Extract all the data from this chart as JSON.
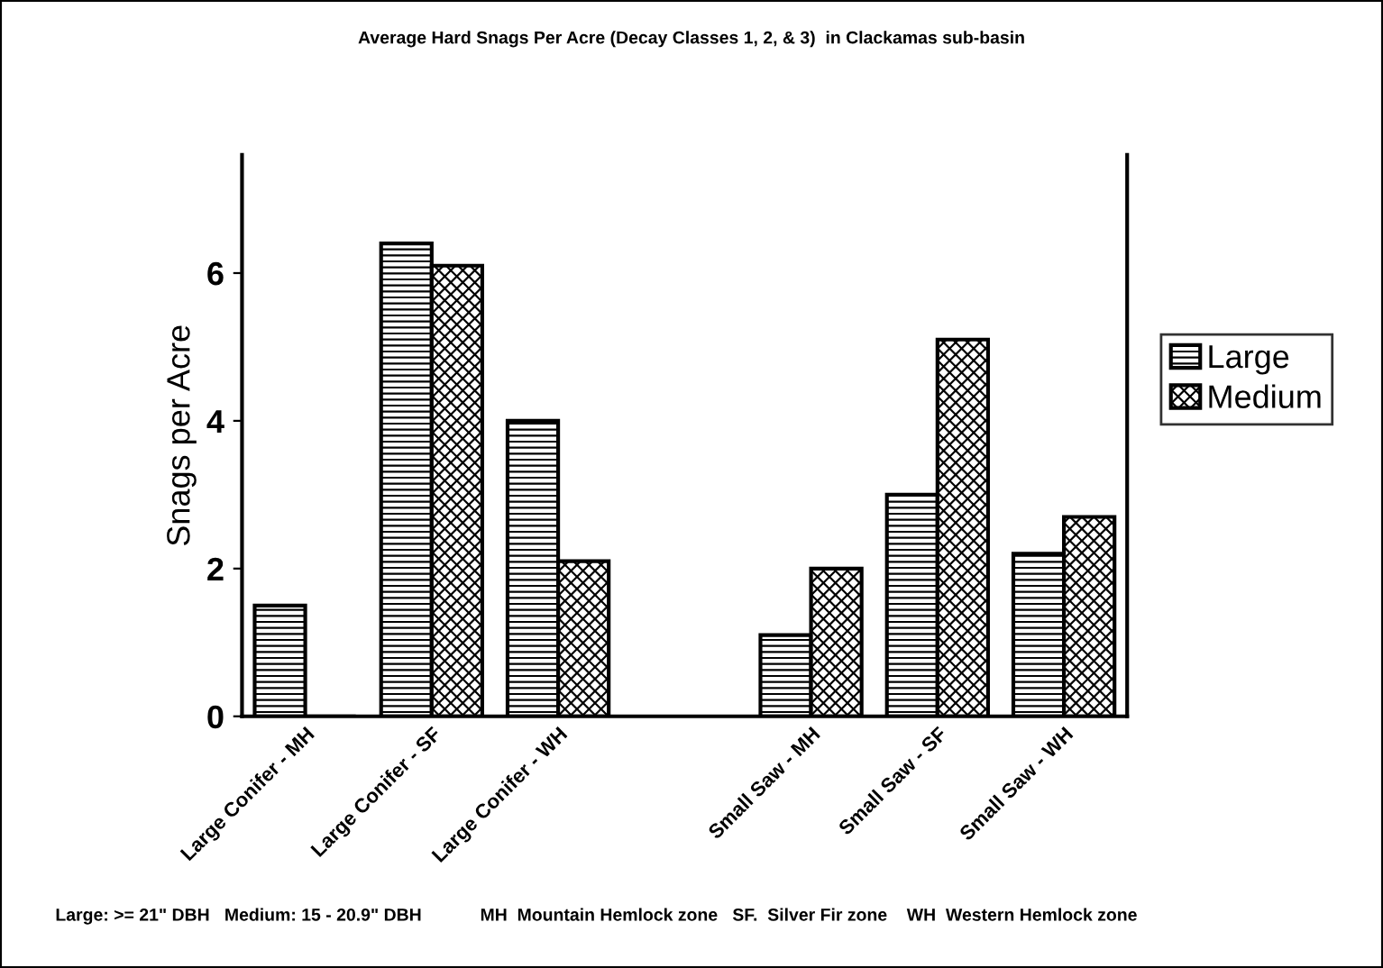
{
  "chart_data": {
    "type": "bar",
    "title": "Average Hard Snags Per Acre (Decay Classes 1, 2, & 3)  in Clackamas sub-basin",
    "ylabel": "Snags per Acre",
    "categories": [
      "Large Conifer - MH",
      "Large Conifer - SF",
      "Large Conifer - WH",
      null,
      "Small Saw - MH",
      "Small Saw - SF",
      "Small Saw - WH"
    ],
    "series": [
      {
        "name": "Large",
        "color": "#000000",
        "values": [
          1.5,
          6.4,
          4.0,
          null,
          1.1,
          3.0,
          2.2
        ]
      },
      {
        "name": "Medium",
        "color": "#000000",
        "values": [
          0,
          6.1,
          2.1,
          null,
          2.0,
          5.1,
          2.7
        ]
      }
    ],
    "ylim": [
      0,
      7.6
    ],
    "yticks": [
      0,
      2,
      4,
      6
    ],
    "grid": false,
    "legend": "right",
    "annotations": [
      "Large: >= 21\" DBH   Medium: 15 - 20.9\" DBH            MH  Mountain Hemlock zone   SF.  Silver Fir zone    WH  Western Hemlock zone"
    ]
  }
}
